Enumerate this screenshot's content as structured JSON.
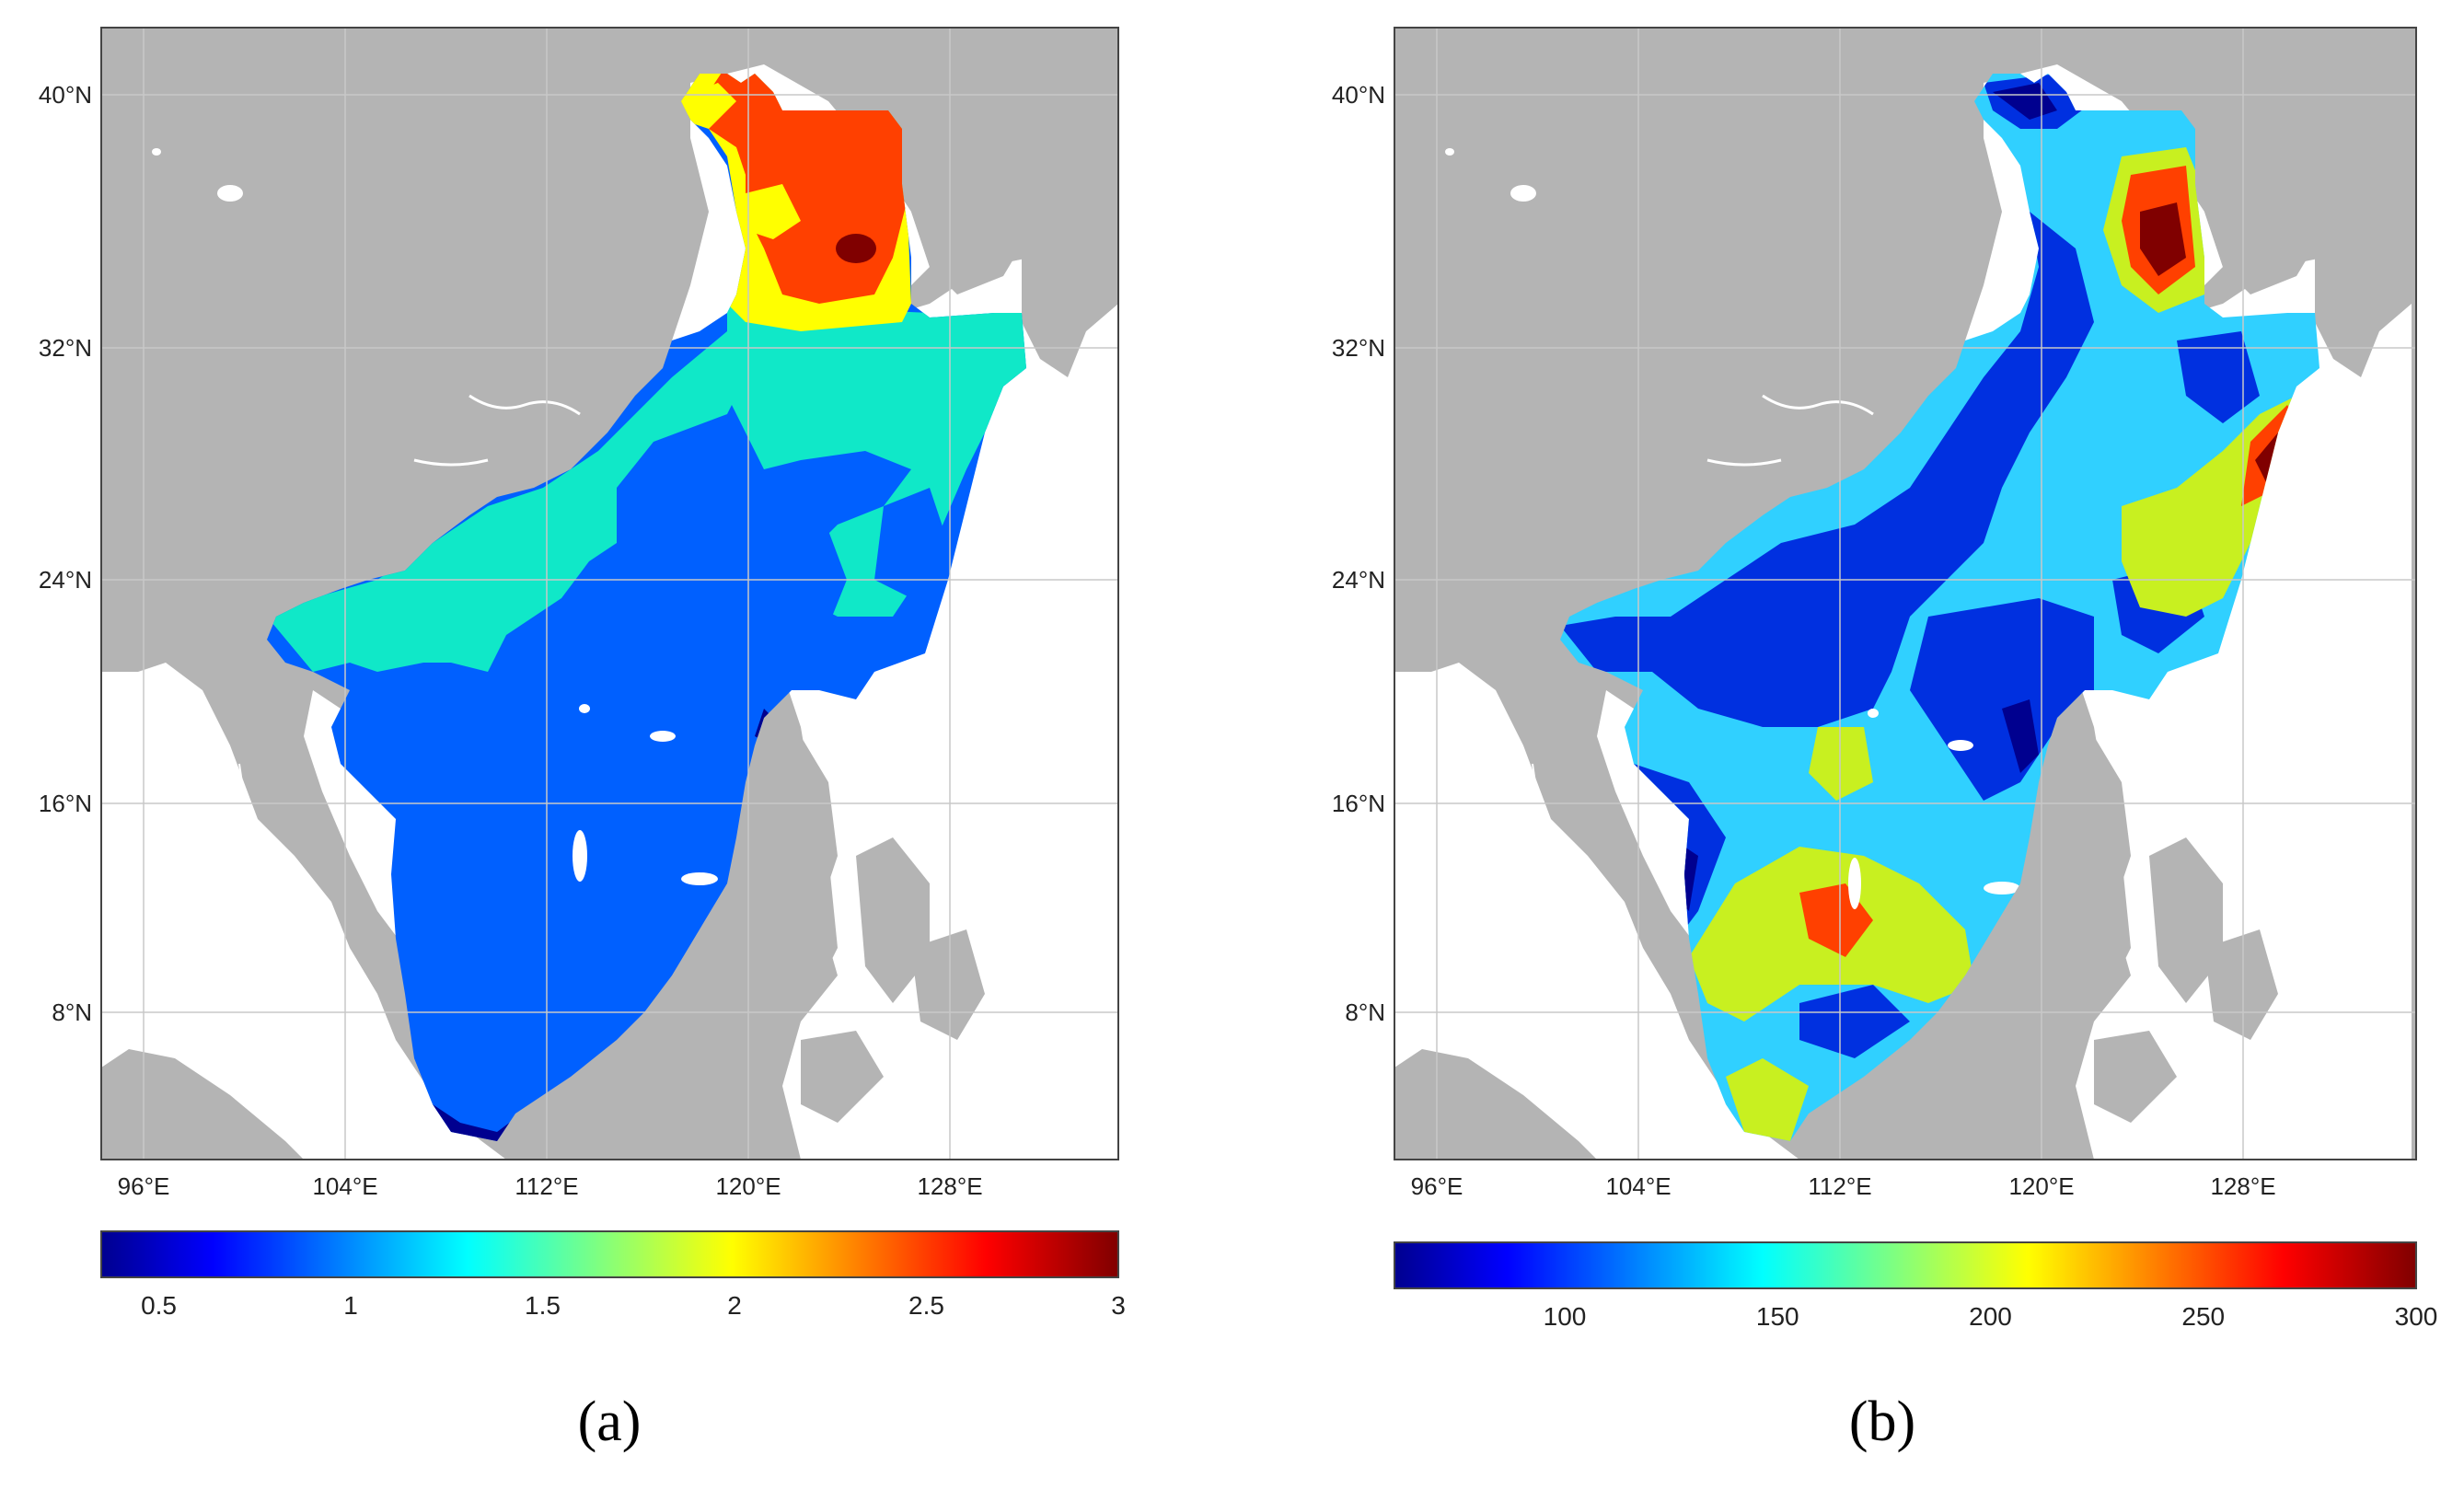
{
  "figure": {
    "panels": [
      {
        "id": "a",
        "label": "(a)",
        "lat_labels": [
          "40°N",
          "32°N",
          "24°N",
          "16°N",
          "8°N"
        ],
        "lon_labels": [
          "96°E",
          "104°E",
          "112°E",
          "120°E",
          "128°E"
        ],
        "colorbar": {
          "min": 0.35,
          "max": 3,
          "ticks": [
            {
              "v": 0.5,
              "t": "0.5"
            },
            {
              "v": 1,
              "t": "1"
            },
            {
              "v": 1.5,
              "t": "1.5"
            },
            {
              "v": 2,
              "t": "2"
            },
            {
              "v": 2.5,
              "t": "2.5"
            },
            {
              "v": 3,
              "t": "3"
            }
          ]
        }
      },
      {
        "id": "b",
        "label": "(b)",
        "lat_labels": [
          "40°N",
          "32°N",
          "24°N",
          "16°N",
          "8°N"
        ],
        "lon_labels": [
          "96°E",
          "104°E",
          "112°E",
          "120°E",
          "128°E"
        ],
        "colorbar": {
          "min": 60,
          "max": 300,
          "ticks": [
            {
              "v": 100,
              "t": "100"
            },
            {
              "v": 150,
              "t": "150"
            },
            {
              "v": 200,
              "t": "200"
            },
            {
              "v": 250,
              "t": "250"
            },
            {
              "v": 300,
              "t": "300"
            }
          ]
        }
      }
    ],
    "colors": {
      "land": "#b4b4b4",
      "ocean": "#ffffff",
      "grid": "#c8c8c8",
      "jet_darkblue": "#00008f",
      "jet_blue": "#0060ff",
      "jet_mediumblue": "#0030e0",
      "jet_cyan": "#10e8c8",
      "jet_lightcyan": "#30d0ff",
      "jet_yellowgreen": "#c8f020",
      "jet_yellow": "#ffff00",
      "jet_orangered": "#ff4000",
      "jet_darkred": "#800000"
    }
  }
}
